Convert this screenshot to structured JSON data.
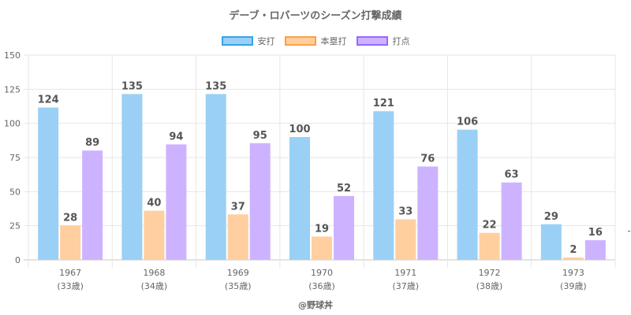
{
  "chart_data": {
    "type": "bar",
    "title": "デーブ・ロバーツのシーズン打撃成績",
    "xlabel": "",
    "ylabel": "",
    "ylim": [
      0,
      150
    ],
    "yticks": [
      0,
      25,
      50,
      75,
      100,
      125,
      150
    ],
    "grid": true,
    "legend_position": "top",
    "categories": [
      "1967",
      "1968",
      "1969",
      "1970",
      "1971",
      "1972",
      "1973"
    ],
    "category_sublabels": [
      "(33歳)",
      "(34歳)",
      "(35歳)",
      "(36歳)",
      "(37歳)",
      "(38歳)",
      "(39歳)"
    ],
    "series": [
      {
        "name": "安打",
        "color": "#9ad0f5",
        "border": "#36a2eb",
        "values": [
          124,
          135,
          135,
          100,
          121,
          106,
          29
        ]
      },
      {
        "name": "本塁打",
        "color": "#ffcf9f",
        "border": "#ff9f40",
        "values": [
          28,
          40,
          37,
          19,
          33,
          22,
          2
        ]
      },
      {
        "name": "打点",
        "color": "#cdb3ff",
        "border": "#9966ff",
        "values": [
          89,
          94,
          95,
          52,
          76,
          63,
          16
        ]
      }
    ],
    "credit": "@野球丼"
  }
}
